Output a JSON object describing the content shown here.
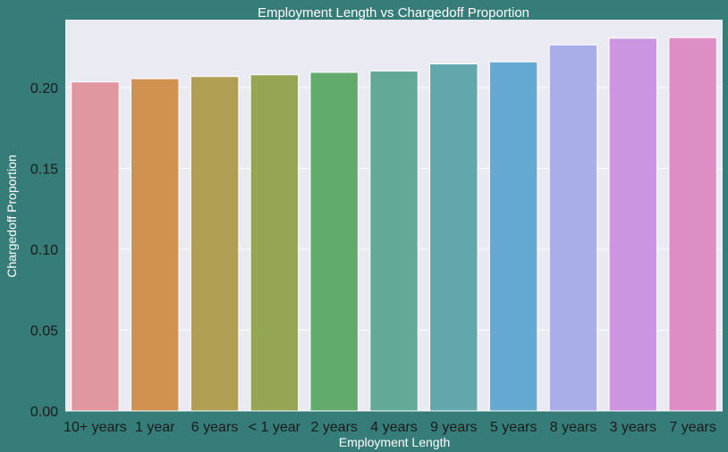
{
  "colors": {
    "background": "#367d7a",
    "plot_background": "#eaeaf2",
    "grid_line": "#ffffff",
    "title_text": "#ffffff",
    "tick_text": "#1a1a1a",
    "bar_colors": [
      "#e0979f",
      "#d2924f",
      "#b09e53",
      "#94a553",
      "#62ab6c",
      "#62aa97",
      "#61a7ab",
      "#64a9d1",
      "#a9aee8",
      "#cc95e2",
      "#dd8fc5"
    ]
  },
  "chart_data": {
    "type": "bar",
    "title": "Employment Length vs Chargedoff Proportion",
    "xlabel": "Employment Length",
    "ylabel": "Chargedoff Proportion",
    "categories": [
      "10+ years",
      "1 year",
      "6 years",
      "< 1 year",
      "2 years",
      "4 years",
      "9 years",
      "5 years",
      "8 years",
      "3 years",
      "7 years"
    ],
    "values": [
      0.2035,
      0.2055,
      0.2068,
      0.2079,
      0.2094,
      0.2102,
      0.2146,
      0.2159,
      0.2264,
      0.2305,
      0.2309
    ],
    "ylim": [
      0,
      0.242
    ],
    "yticks": [
      0.0,
      0.05,
      0.1,
      0.15,
      0.2
    ],
    "ytick_labels": [
      "0.00",
      "0.05",
      "0.10",
      "0.15",
      "0.20"
    ],
    "grid": true,
    "legend": "none"
  }
}
